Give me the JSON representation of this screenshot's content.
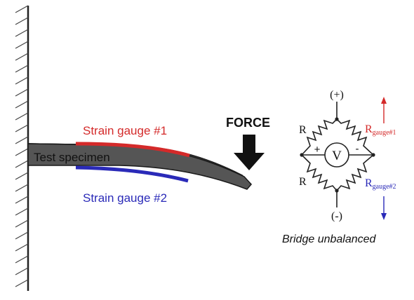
{
  "diagram": {
    "specimen_label": "Test specimen",
    "gauge1_label": "Strain gauge #1",
    "gauge2_label": "Strain gauge #2",
    "force_label": "FORCE",
    "bridge": {
      "plus_label": "(+)",
      "minus_label": "(-)",
      "resistor_top_left": "R",
      "resistor_bottom_left": "R",
      "rgauge1_main": "R",
      "rgauge1_sub": "gauge#1",
      "rgauge2_main": "R",
      "rgauge2_sub": "gauge#2",
      "meter_symbol": "V",
      "meter_plus": "+",
      "meter_minus": "-",
      "status_caption": "Bridge unbalanced"
    },
    "colors": {
      "gauge1": "#d42a2a",
      "gauge2": "#2a2ab8",
      "specimen_fill": "#555555",
      "wire": "#222222",
      "arrow_up": "#d42a2a",
      "arrow_down": "#2a2ab8"
    }
  }
}
